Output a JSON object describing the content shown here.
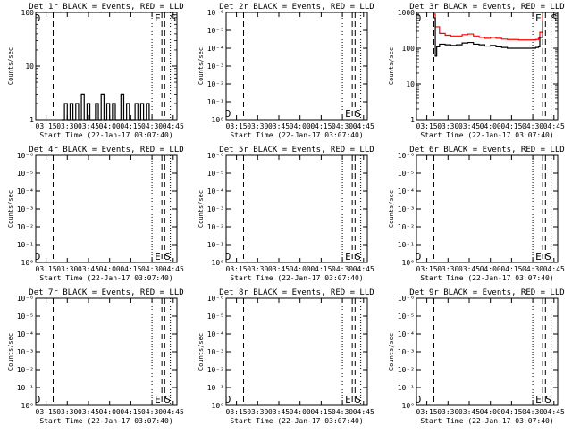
{
  "chart_data": [
    {
      "type": "line",
      "title": "Det 1r BLACK = Events, RED = LLD",
      "xlabel": "Start Time (22-Jan-17 03:07:40)",
      "ylabel": "Counts/sec",
      "scale": "log",
      "ylim": [
        1,
        100
      ],
      "yticks": [
        {
          "v": 1,
          "label": "1"
        },
        {
          "v": 10,
          "label": "10"
        },
        {
          "v": 100,
          "label": "100"
        }
      ],
      "xlim": [
        "03:07:40",
        "04:47:40"
      ],
      "xticks": [
        "03:15",
        "03:30",
        "03:45",
        "04:00",
        "04:15",
        "04:30",
        "04:45"
      ],
      "dashed_lines": [
        "03:20",
        "04:37",
        "04:39"
      ],
      "dotted_lines": [
        "04:30",
        "04:43"
      ],
      "markers": [
        {
          "label": "D",
          "at": "03:09",
          "pos": "top"
        },
        {
          "label": "E",
          "at": "04:34",
          "pos": "top"
        },
        {
          "label": "S",
          "at": "04:45",
          "pos": "top"
        }
      ],
      "series": [
        {
          "color": "#000000",
          "x": [
            "03:26",
            "03:28",
            "03:30",
            "03:32",
            "03:34",
            "03:36",
            "03:38",
            "03:40",
            "03:42",
            "03:44",
            "03:46",
            "03:48",
            "03:50",
            "03:52",
            "03:54",
            "03:56",
            "03:58",
            "04:00",
            "04:02",
            "04:04",
            "04:06",
            "04:08",
            "04:10",
            "04:12",
            "04:14",
            "04:16",
            "04:18",
            "04:20",
            "04:22",
            "04:24",
            "04:26",
            "04:28"
          ],
          "y": [
            1,
            2,
            1,
            2,
            1,
            2,
            1,
            3,
            1,
            2,
            1,
            1,
            2,
            1,
            3,
            1,
            2,
            1,
            2,
            1,
            1,
            3,
            1,
            2,
            1,
            1,
            2,
            1,
            2,
            1,
            2,
            1
          ]
        }
      ]
    },
    {
      "type": "line",
      "title": "Det 2r BLACK = Events, RED = LLD",
      "xlabel": "Start Time (22-Jan-17 03:07:40)",
      "ylabel": "Counts/sec",
      "scale": "log",
      "ylim": [
        1,
        1e-06
      ],
      "yticks": [
        {
          "v": 1,
          "label": "10⁰"
        },
        {
          "v": 0.1,
          "label": "10⁻¹"
        },
        {
          "v": 0.01,
          "label": "10⁻²"
        },
        {
          "v": 0.001,
          "label": "10⁻³"
        },
        {
          "v": 0.0001,
          "label": "10⁻⁴"
        },
        {
          "v": 1e-05,
          "label": "10⁻⁵"
        },
        {
          "v": 1e-06,
          "label": "10⁻⁶"
        }
      ],
      "xlim": [
        "03:07:40",
        "04:47:40"
      ],
      "xticks": [
        "03:15",
        "03:30",
        "03:45",
        "04:00",
        "04:15",
        "04:30",
        "04:45"
      ],
      "dashed_lines": [
        "03:20",
        "04:37",
        "04:39"
      ],
      "dotted_lines": [
        "04:30",
        "04:43"
      ],
      "markers": [
        {
          "label": "D",
          "at": "03:09",
          "pos": "bottom"
        },
        {
          "label": "E",
          "at": "04:34",
          "pos": "bottom"
        },
        {
          "label": "S",
          "at": "04:41",
          "pos": "bottom"
        }
      ],
      "series": []
    },
    {
      "type": "line",
      "title": "Det 3r BLACK = Events, RED = LLD",
      "xlabel": "Start Time (22-Jan-17 03:07:40)",
      "ylabel": "Counts/sec",
      "scale": "log",
      "ylim": [
        1,
        1000
      ],
      "yticks": [
        {
          "v": 1,
          "label": "1"
        },
        {
          "v": 10,
          "label": "10"
        },
        {
          "v": 100,
          "label": "100"
        },
        {
          "v": 1000,
          "label": "1000"
        }
      ],
      "xlim": [
        "03:07:40",
        "04:47:40"
      ],
      "xticks": [
        "03:15",
        "03:30",
        "03:45",
        "04:00",
        "04:15",
        "04:30",
        "04:45"
      ],
      "dashed_lines": [
        "03:20",
        "04:37",
        "04:39"
      ],
      "dotted_lines": [
        "04:30",
        "04:43"
      ],
      "markers": [
        {
          "label": "D",
          "at": "03:09",
          "pos": "top"
        },
        {
          "label": "E",
          "at": "04:34",
          "pos": "top"
        },
        {
          "label": "S",
          "at": "04:45",
          "pos": "top"
        }
      ],
      "series": [
        {
          "color": "#ff0000",
          "x": [
            "03:20",
            "03:21",
            "03:24",
            "03:28",
            "03:32",
            "03:36",
            "03:40",
            "03:44",
            "03:48",
            "03:52",
            "03:56",
            "04:00",
            "04:04",
            "04:08",
            "04:12",
            "04:16",
            "04:20",
            "04:24",
            "04:28",
            "04:32",
            "04:34",
            "04:35",
            "04:37"
          ],
          "y": [
            900,
            400,
            260,
            230,
            220,
            220,
            240,
            250,
            220,
            200,
            190,
            200,
            190,
            180,
            175,
            175,
            170,
            170,
            170,
            175,
            190,
            280,
            800
          ]
        },
        {
          "color": "#000000",
          "x": [
            "03:20",
            "03:21",
            "03:22",
            "03:24",
            "03:28",
            "03:32",
            "03:36",
            "03:40",
            "03:44",
            "03:48",
            "03:52",
            "03:56",
            "04:00",
            "04:04",
            "04:08",
            "04:12",
            "04:16",
            "04:20",
            "04:24",
            "04:28",
            "04:32",
            "04:34",
            "04:35",
            "04:37"
          ],
          "y": [
            700,
            60,
            110,
            130,
            125,
            120,
            125,
            140,
            145,
            130,
            125,
            115,
            120,
            110,
            105,
            100,
            100,
            100,
            100,
            100,
            105,
            110,
            200,
            600
          ]
        }
      ]
    },
    {
      "type": "line",
      "title": "Det 4r BLACK = Events, RED = LLD",
      "xlabel": "Start Time (22-Jan-17 03:07:40)",
      "ylabel": "Counts/sec",
      "scale": "log",
      "ylim": [
        1,
        1e-06
      ],
      "yticks": [
        {
          "v": 1,
          "label": "10⁰"
        },
        {
          "v": 0.1,
          "label": "10⁻¹"
        },
        {
          "v": 0.01,
          "label": "10⁻²"
        },
        {
          "v": 0.001,
          "label": "10⁻³"
        },
        {
          "v": 0.0001,
          "label": "10⁻⁴"
        },
        {
          "v": 1e-05,
          "label": "10⁻⁵"
        },
        {
          "v": 1e-06,
          "label": "10⁻⁶"
        }
      ],
      "xlim": [
        "03:07:40",
        "04:47:40"
      ],
      "xticks": [
        "03:15",
        "03:30",
        "03:45",
        "04:00",
        "04:15",
        "04:30",
        "04:45"
      ],
      "dashed_lines": [
        "03:20",
        "04:37",
        "04:39"
      ],
      "dotted_lines": [
        "04:30",
        "04:43"
      ],
      "markers": [
        {
          "label": "D",
          "at": "03:09",
          "pos": "bottom"
        },
        {
          "label": "E",
          "at": "04:34",
          "pos": "bottom"
        },
        {
          "label": "S",
          "at": "04:41",
          "pos": "bottom"
        }
      ],
      "series": []
    },
    {
      "type": "line",
      "title": "Det 5r BLACK = Events, RED = LLD",
      "xlabel": "Start Time (22-Jan-17 03:07:40)",
      "ylabel": "Counts/sec",
      "scale": "log",
      "ylim": [
        1,
        1e-06
      ],
      "yticks": [
        {
          "v": 1,
          "label": "10⁰"
        },
        {
          "v": 0.1,
          "label": "10⁻¹"
        },
        {
          "v": 0.01,
          "label": "10⁻²"
        },
        {
          "v": 0.001,
          "label": "10⁻³"
        },
        {
          "v": 0.0001,
          "label": "10⁻⁴"
        },
        {
          "v": 1e-05,
          "label": "10⁻⁵"
        },
        {
          "v": 1e-06,
          "label": "10⁻⁶"
        }
      ],
      "xlim": [
        "03:07:40",
        "04:47:40"
      ],
      "xticks": [
        "03:15",
        "03:30",
        "03:45",
        "04:00",
        "04:15",
        "04:30",
        "04:45"
      ],
      "dashed_lines": [
        "03:20",
        "04:37",
        "04:39"
      ],
      "dotted_lines": [
        "04:30",
        "04:43"
      ],
      "markers": [
        {
          "label": "D",
          "at": "03:09",
          "pos": "bottom"
        },
        {
          "label": "E",
          "at": "04:34",
          "pos": "bottom"
        },
        {
          "label": "S",
          "at": "04:41",
          "pos": "bottom"
        }
      ],
      "series": []
    },
    {
      "type": "line",
      "title": "Det 6r BLACK = Events, RED = LLD",
      "xlabel": "Start Time (22-Jan-17 03:07:40)",
      "ylabel": "Counts/sec",
      "scale": "log",
      "ylim": [
        1,
        1e-06
      ],
      "yticks": [
        {
          "v": 1,
          "label": "10⁰"
        },
        {
          "v": 0.1,
          "label": "10⁻¹"
        },
        {
          "v": 0.01,
          "label": "10⁻²"
        },
        {
          "v": 0.001,
          "label": "10⁻³"
        },
        {
          "v": 0.0001,
          "label": "10⁻⁴"
        },
        {
          "v": 1e-05,
          "label": "10⁻⁵"
        },
        {
          "v": 1e-06,
          "label": "10⁻⁶"
        }
      ],
      "xlim": [
        "03:07:40",
        "04:47:40"
      ],
      "xticks": [
        "03:15",
        "03:30",
        "03:45",
        "04:00",
        "04:15",
        "04:30",
        "04:45"
      ],
      "dashed_lines": [
        "03:20",
        "04:37",
        "04:39"
      ],
      "dotted_lines": [
        "04:30",
        "04:43"
      ],
      "markers": [
        {
          "label": "D",
          "at": "03:09",
          "pos": "bottom"
        },
        {
          "label": "E",
          "at": "04:34",
          "pos": "bottom"
        },
        {
          "label": "S",
          "at": "04:41",
          "pos": "bottom"
        }
      ],
      "series": []
    },
    {
      "type": "line",
      "title": "Det 7r BLACK = Events, RED = LLD",
      "xlabel": "Start Time (22-Jan-17 03:07:40)",
      "ylabel": "Counts/sec",
      "scale": "log",
      "ylim": [
        1,
        1e-06
      ],
      "yticks": [
        {
          "v": 1,
          "label": "10⁰"
        },
        {
          "v": 0.1,
          "label": "10⁻¹"
        },
        {
          "v": 0.01,
          "label": "10⁻²"
        },
        {
          "v": 0.001,
          "label": "10⁻³"
        },
        {
          "v": 0.0001,
          "label": "10⁻⁴"
        },
        {
          "v": 1e-05,
          "label": "10⁻⁵"
        },
        {
          "v": 1e-06,
          "label": "10⁻⁶"
        }
      ],
      "xlim": [
        "03:07:40",
        "04:47:40"
      ],
      "xticks": [
        "03:15",
        "03:30",
        "03:45",
        "04:00",
        "04:15",
        "04:30",
        "04:45"
      ],
      "dashed_lines": [
        "03:20",
        "04:37",
        "04:39"
      ],
      "dotted_lines": [
        "04:30",
        "04:43"
      ],
      "markers": [
        {
          "label": "D",
          "at": "03:09",
          "pos": "bottom"
        },
        {
          "label": "E",
          "at": "04:34",
          "pos": "bottom"
        },
        {
          "label": "S",
          "at": "04:41",
          "pos": "bottom"
        }
      ],
      "series": []
    },
    {
      "type": "line",
      "title": "Det 8r BLACK = Events, RED = LLD",
      "xlabel": "Start Time (22-Jan-17 03:07:40)",
      "ylabel": "Counts/sec",
      "scale": "log",
      "ylim": [
        1,
        1e-06
      ],
      "yticks": [
        {
          "v": 1,
          "label": "10⁰"
        },
        {
          "v": 0.1,
          "label": "10⁻¹"
        },
        {
          "v": 0.01,
          "label": "10⁻²"
        },
        {
          "v": 0.001,
          "label": "10⁻³"
        },
        {
          "v": 0.0001,
          "label": "10⁻⁴"
        },
        {
          "v": 1e-05,
          "label": "10⁻⁵"
        },
        {
          "v": 1e-06,
          "label": "10⁻⁶"
        }
      ],
      "xlim": [
        "03:07:40",
        "04:47:40"
      ],
      "xticks": [
        "03:15",
        "03:30",
        "03:45",
        "04:00",
        "04:15",
        "04:30",
        "04:45"
      ],
      "dashed_lines": [
        "03:20",
        "04:37",
        "04:39"
      ],
      "dotted_lines": [
        "04:30",
        "04:43"
      ],
      "markers": [
        {
          "label": "D",
          "at": "03:09",
          "pos": "bottom"
        },
        {
          "label": "E",
          "at": "04:34",
          "pos": "bottom"
        },
        {
          "label": "S",
          "at": "04:41",
          "pos": "bottom"
        }
      ],
      "series": []
    },
    {
      "type": "line",
      "title": "Det 9r BLACK = Events, RED = LLD",
      "xlabel": "Start Time (22-Jan-17 03:07:40)",
      "ylabel": "Counts/sec",
      "scale": "log",
      "ylim": [
        1,
        1e-06
      ],
      "yticks": [
        {
          "v": 1,
          "label": "10⁰"
        },
        {
          "v": 0.1,
          "label": "10⁻¹"
        },
        {
          "v": 0.01,
          "label": "10⁻²"
        },
        {
          "v": 0.001,
          "label": "10⁻³"
        },
        {
          "v": 0.0001,
          "label": "10⁻⁴"
        },
        {
          "v": 1e-05,
          "label": "10⁻⁵"
        },
        {
          "v": 1e-06,
          "label": "10⁻⁶"
        }
      ],
      "xlim": [
        "03:07:40",
        "04:47:40"
      ],
      "xticks": [
        "03:15",
        "03:30",
        "03:45",
        "04:00",
        "04:15",
        "04:30",
        "04:45"
      ],
      "dashed_lines": [
        "03:20",
        "04:37",
        "04:39"
      ],
      "dotted_lines": [
        "04:30",
        "04:43"
      ],
      "markers": [
        {
          "label": "D",
          "at": "03:09",
          "pos": "bottom"
        },
        {
          "label": "E",
          "at": "04:34",
          "pos": "bottom"
        },
        {
          "label": "S",
          "at": "04:41",
          "pos": "bottom"
        }
      ],
      "series": []
    }
  ]
}
